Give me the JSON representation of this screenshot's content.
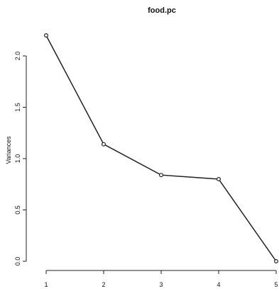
{
  "chart_data": {
    "type": "line",
    "title": "food.pc",
    "xlabel": "",
    "ylabel": "Variances",
    "x": [
      1,
      2,
      3,
      4,
      5
    ],
    "values": [
      2.2,
      1.14,
      0.84,
      0.8,
      0.0
    ],
    "xlim": [
      1,
      5
    ],
    "ylim": [
      0,
      2.2
    ],
    "xticks": [
      "1",
      "2",
      "3",
      "4",
      "5"
    ],
    "yticks": [
      "0.0",
      "0.5",
      "1.0",
      "1.5",
      "2.0"
    ],
    "grid": false
  }
}
